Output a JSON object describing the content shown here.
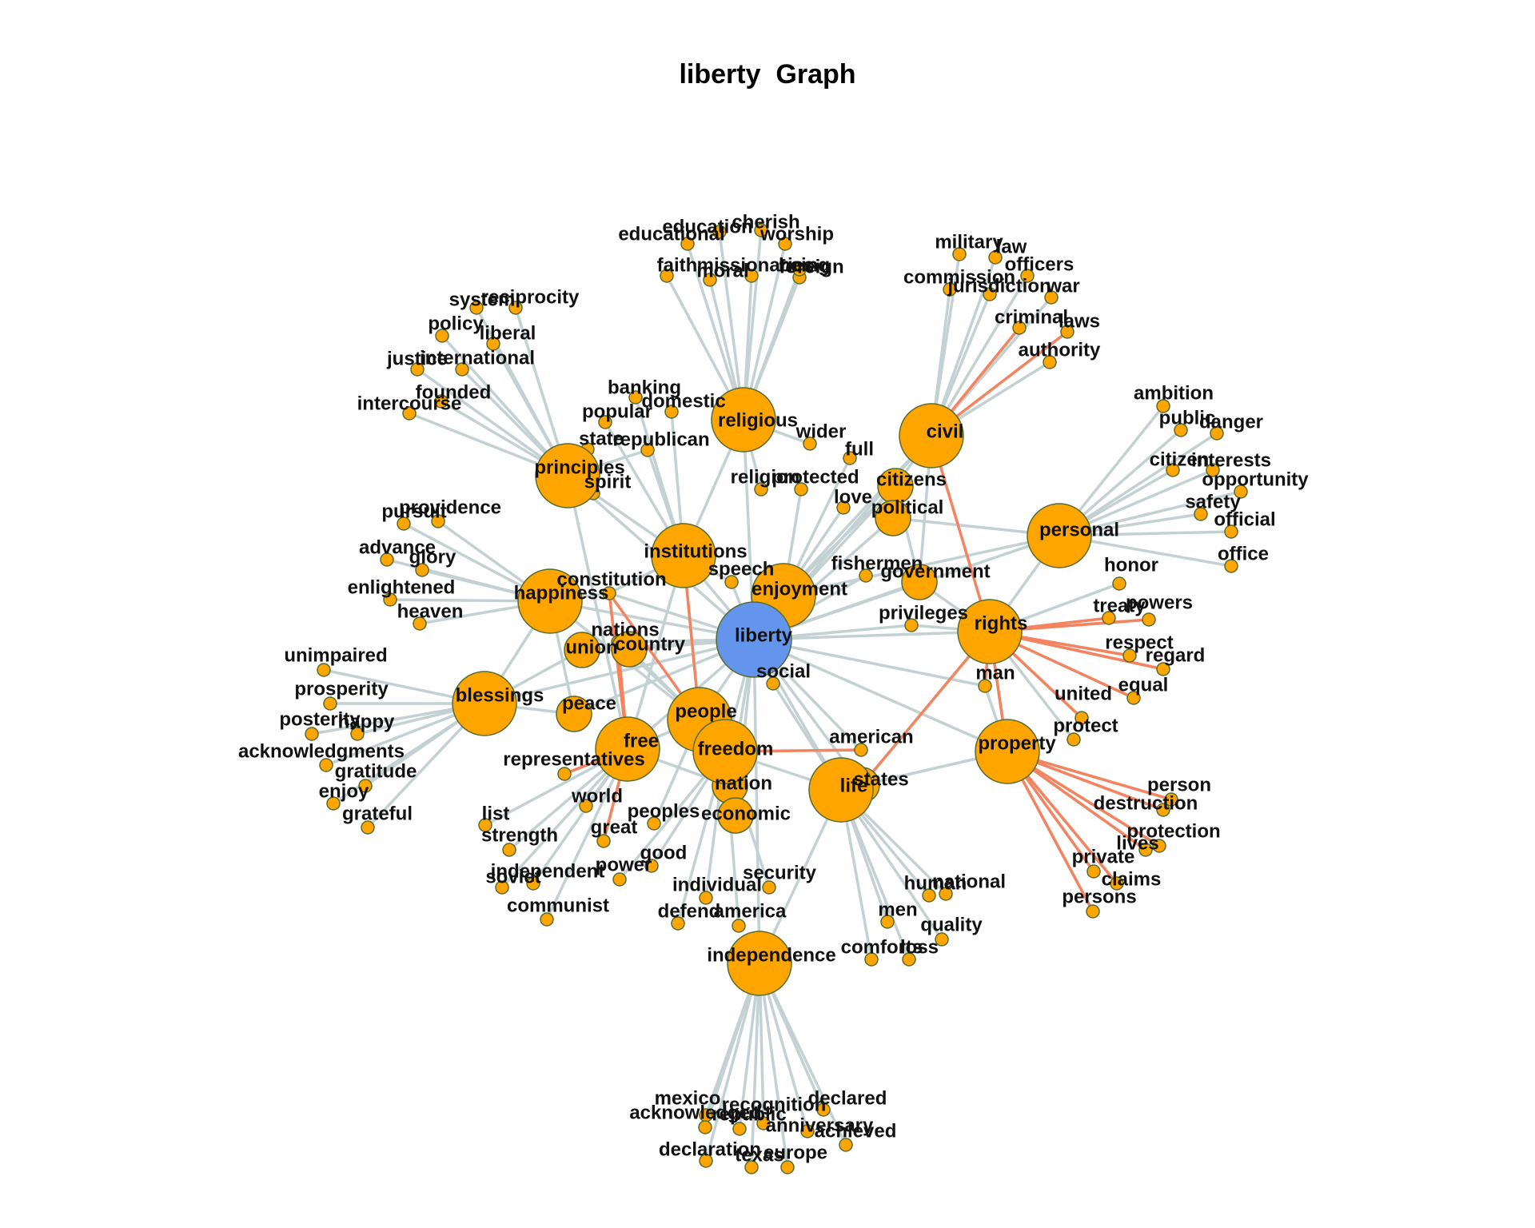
{
  "title": "liberty  Graph",
  "colors": {
    "edge": "#c4d1d3",
    "edge_highlight": "#f4845f",
    "node": "#ffa500",
    "node_stroke": "#556b2f",
    "center": "#6495ed"
  },
  "nodes": [
    {
      "id": "liberty",
      "label": "liberty",
      "size": "center"
    },
    {
      "id": "religious",
      "label": "religious",
      "size": "large"
    },
    {
      "id": "civil",
      "label": "civil",
      "size": "large"
    },
    {
      "id": "principles",
      "label": "principles",
      "size": "large"
    },
    {
      "id": "personal",
      "label": "personal",
      "size": "large"
    },
    {
      "id": "institutions",
      "label": "institutions",
      "size": "large"
    },
    {
      "id": "happiness",
      "label": "happiness",
      "size": "large"
    },
    {
      "id": "enjoyment",
      "label": "enjoyment",
      "size": "large"
    },
    {
      "id": "rights",
      "label": "rights",
      "size": "large"
    },
    {
      "id": "blessings",
      "label": "blessings",
      "size": "large"
    },
    {
      "id": "people",
      "label": "people",
      "size": "large"
    },
    {
      "id": "free",
      "label": "free",
      "size": "large"
    },
    {
      "id": "freedom",
      "label": "freedom",
      "size": "large"
    },
    {
      "id": "property",
      "label": "property",
      "size": "large"
    },
    {
      "id": "life",
      "label": "life",
      "size": "large"
    },
    {
      "id": "independence",
      "label": "independence",
      "size": "large"
    },
    {
      "id": "citizens",
      "label": "citizens",
      "size": "medium"
    },
    {
      "id": "political",
      "label": "political",
      "size": "medium"
    },
    {
      "id": "government",
      "label": "government",
      "size": "medium"
    },
    {
      "id": "union",
      "label": "union",
      "size": "medium"
    },
    {
      "id": "country",
      "label": "country",
      "size": "medium"
    },
    {
      "id": "peace",
      "label": "peace",
      "size": "medium"
    },
    {
      "id": "nation",
      "label": "nation",
      "size": "medium"
    },
    {
      "id": "economic",
      "label": "economic",
      "size": "medium"
    },
    {
      "id": "states",
      "label": "states",
      "size": "medium"
    },
    {
      "id": "educational",
      "label": "educational"
    },
    {
      "id": "education",
      "label": "education"
    },
    {
      "id": "cherish",
      "label": "cherish"
    },
    {
      "id": "worship",
      "label": "worship"
    },
    {
      "id": "faith",
      "label": "faith"
    },
    {
      "id": "moral",
      "label": "moral"
    },
    {
      "id": "missionaries",
      "label": "missionaries"
    },
    {
      "id": "foreign",
      "label": "foreign"
    },
    {
      "id": "being",
      "label": "being"
    },
    {
      "id": "military",
      "label": "military"
    },
    {
      "id": "law",
      "label": "law"
    },
    {
      "id": "officers",
      "label": "officers"
    },
    {
      "id": "commission",
      "label": "commission"
    },
    {
      "id": "jurisdiction",
      "label": "jurisdiction"
    },
    {
      "id": "war",
      "label": "war"
    },
    {
      "id": "criminal",
      "label": "criminal"
    },
    {
      "id": "laws",
      "label": "laws"
    },
    {
      "id": "authority",
      "label": "authority"
    },
    {
      "id": "system",
      "label": "system"
    },
    {
      "id": "reciprocity",
      "label": "reciprocity"
    },
    {
      "id": "liberal",
      "label": "liberal"
    },
    {
      "id": "policy",
      "label": "policy"
    },
    {
      "id": "justice",
      "label": "justice"
    },
    {
      "id": "international",
      "label": "international"
    },
    {
      "id": "founded",
      "label": "founded"
    },
    {
      "id": "intercourse",
      "label": "intercourse"
    },
    {
      "id": "banking",
      "label": "banking"
    },
    {
      "id": "popular",
      "label": "popular"
    },
    {
      "id": "domestic",
      "label": "domestic"
    },
    {
      "id": "state",
      "label": "state"
    },
    {
      "id": "republican",
      "label": "republican"
    },
    {
      "id": "spirit",
      "label": "spirit"
    },
    {
      "id": "wider",
      "label": "wider"
    },
    {
      "id": "full",
      "label": "full"
    },
    {
      "id": "religion",
      "label": "religion"
    },
    {
      "id": "protected",
      "label": "protected"
    },
    {
      "id": "love",
      "label": "love"
    },
    {
      "id": "ambition",
      "label": "ambition"
    },
    {
      "id": "public",
      "label": "public"
    },
    {
      "id": "danger",
      "label": "danger"
    },
    {
      "id": "citizen",
      "label": "citizen"
    },
    {
      "id": "interests",
      "label": "interests"
    },
    {
      "id": "opportunity",
      "label": "opportunity"
    },
    {
      "id": "safety",
      "label": "safety"
    },
    {
      "id": "official",
      "label": "official"
    },
    {
      "id": "office",
      "label": "office"
    },
    {
      "id": "honor",
      "label": "honor"
    },
    {
      "id": "pursuit",
      "label": "pursuit"
    },
    {
      "id": "providence",
      "label": "providence"
    },
    {
      "id": "advance",
      "label": "advance"
    },
    {
      "id": "glory",
      "label": "glory"
    },
    {
      "id": "enlightened",
      "label": "enlightened"
    },
    {
      "id": "heaven",
      "label": "heaven"
    },
    {
      "id": "constitution",
      "label": "constitution"
    },
    {
      "id": "speech",
      "label": "speech"
    },
    {
      "id": "fishermen",
      "label": "fishermen"
    },
    {
      "id": "privileges",
      "label": "privileges"
    },
    {
      "id": "treaty",
      "label": "treaty"
    },
    {
      "id": "powers",
      "label": "powers"
    },
    {
      "id": "respect",
      "label": "respect"
    },
    {
      "id": "regard",
      "label": "regard"
    },
    {
      "id": "nations",
      "label": "nations"
    },
    {
      "id": "social",
      "label": "social"
    },
    {
      "id": "man",
      "label": "man"
    },
    {
      "id": "equal",
      "label": "equal"
    },
    {
      "id": "united",
      "label": "united"
    },
    {
      "id": "protect",
      "label": "protect"
    },
    {
      "id": "unimpaired",
      "label": "unimpaired"
    },
    {
      "id": "prosperity",
      "label": "prosperity"
    },
    {
      "id": "posterity",
      "label": "posterity"
    },
    {
      "id": "happy",
      "label": "happy"
    },
    {
      "id": "acknowledgments",
      "label": "acknowledgments"
    },
    {
      "id": "gratitude",
      "label": "gratitude"
    },
    {
      "id": "enjoy",
      "label": "enjoy"
    },
    {
      "id": "grateful",
      "label": "grateful"
    },
    {
      "id": "american",
      "label": "american"
    },
    {
      "id": "representatives",
      "label": "representatives"
    },
    {
      "id": "world",
      "label": "world"
    },
    {
      "id": "list",
      "label": "list"
    },
    {
      "id": "strength",
      "label": "strength"
    },
    {
      "id": "great",
      "label": "great"
    },
    {
      "id": "peoples",
      "label": "peoples"
    },
    {
      "id": "good",
      "label": "good"
    },
    {
      "id": "power",
      "label": "power"
    },
    {
      "id": "independent",
      "label": "independent"
    },
    {
      "id": "soviet",
      "label": "soviet"
    },
    {
      "id": "communist",
      "label": "communist"
    },
    {
      "id": "individual",
      "label": "individual"
    },
    {
      "id": "security",
      "label": "security"
    },
    {
      "id": "defend",
      "label": "defend"
    },
    {
      "id": "america",
      "label": "america"
    },
    {
      "id": "human",
      "label": "human"
    },
    {
      "id": "national",
      "label": "national"
    },
    {
      "id": "men",
      "label": "men"
    },
    {
      "id": "quality",
      "label": "quality"
    },
    {
      "id": "comforts",
      "label": "comforts"
    },
    {
      "id": "loss",
      "label": "loss"
    },
    {
      "id": "person",
      "label": "person"
    },
    {
      "id": "destruction",
      "label": "destruction"
    },
    {
      "id": "protection",
      "label": "protection"
    },
    {
      "id": "lives",
      "label": "lives"
    },
    {
      "id": "private",
      "label": "private"
    },
    {
      "id": "claims",
      "label": "claims"
    },
    {
      "id": "persons",
      "label": "persons"
    },
    {
      "id": "mexico",
      "label": "mexico"
    },
    {
      "id": "declared",
      "label": "declared"
    },
    {
      "id": "acknowledged",
      "label": "acknowledged"
    },
    {
      "id": "recognition",
      "label": "recognition"
    },
    {
      "id": "republic",
      "label": "republic"
    },
    {
      "id": "anniversary",
      "label": "anniversary"
    },
    {
      "id": "achieved",
      "label": "achieved"
    },
    {
      "id": "declaration",
      "label": "declaration"
    },
    {
      "id": "texas",
      "label": "texas"
    },
    {
      "id": "europe",
      "label": "europe"
    }
  ],
  "edges": [
    [
      "liberty",
      "religious"
    ],
    [
      "liberty",
      "civil"
    ],
    [
      "liberty",
      "principles"
    ],
    [
      "liberty",
      "personal"
    ],
    [
      "liberty",
      "institutions"
    ],
    [
      "liberty",
      "happiness"
    ],
    [
      "liberty",
      "enjoyment"
    ],
    [
      "liberty",
      "rights"
    ],
    [
      "liberty",
      "blessings"
    ],
    [
      "liberty",
      "people"
    ],
    [
      "liberty",
      "free"
    ],
    [
      "liberty",
      "freedom"
    ],
    [
      "liberty",
      "property"
    ],
    [
      "liberty",
      "life"
    ],
    [
      "liberty",
      "independence"
    ],
    [
      "liberty",
      "citizens"
    ],
    [
      "liberty",
      "political"
    ],
    [
      "liberty",
      "government"
    ],
    [
      "liberty",
      "union"
    ],
    [
      "liberty",
      "country"
    ],
    [
      "liberty",
      "peace"
    ],
    [
      "liberty",
      "nation"
    ],
    [
      "liberty",
      "economic"
    ],
    [
      "liberty",
      "states"
    ],
    [
      "liberty",
      "social"
    ],
    [
      "liberty",
      "speech"
    ],
    [
      "liberty",
      "privileges"
    ],
    [
      "liberty",
      "fishermen"
    ],
    [
      "liberty",
      "constitution"
    ],
    [
      "liberty",
      "nations"
    ],
    [
      "liberty",
      "american"
    ],
    [
      "liberty",
      "man"
    ],
    [
      "religious",
      "educational"
    ],
    [
      "religious",
      "education"
    ],
    [
      "religious",
      "cherish"
    ],
    [
      "religious",
      "worship"
    ],
    [
      "religious",
      "faith"
    ],
    [
      "religious",
      "moral"
    ],
    [
      "religious",
      "missionaries"
    ],
    [
      "religious",
      "foreign"
    ],
    [
      "religious",
      "being"
    ],
    [
      "religious",
      "wider"
    ],
    [
      "religious",
      "religion"
    ],
    [
      "religious",
      "institutions"
    ],
    [
      "civil",
      "military"
    ],
    [
      "civil",
      "law"
    ],
    [
      "civil",
      "officers"
    ],
    [
      "civil",
      "commission"
    ],
    [
      "civil",
      "jurisdiction"
    ],
    [
      "civil",
      "war"
    ],
    [
      "civil",
      "authority"
    ],
    [
      "civil",
      "citizens"
    ],
    [
      "civil",
      "enjoyment"
    ],
    [
      "civil",
      "government"
    ],
    [
      "principles",
      "system"
    ],
    [
      "principles",
      "reciprocity"
    ],
    [
      "principles",
      "liberal"
    ],
    [
      "principles",
      "policy"
    ],
    [
      "principles",
      "justice"
    ],
    [
      "principles",
      "international"
    ],
    [
      "principles",
      "founded"
    ],
    [
      "principles",
      "intercourse"
    ],
    [
      "principles",
      "state"
    ],
    [
      "principles",
      "spirit"
    ],
    [
      "principles",
      "republican"
    ],
    [
      "principles",
      "institutions"
    ],
    [
      "principles",
      "free"
    ],
    [
      "personal",
      "ambition"
    ],
    [
      "personal",
      "public"
    ],
    [
      "personal",
      "danger"
    ],
    [
      "personal",
      "citizen"
    ],
    [
      "personal",
      "interests"
    ],
    [
      "personal",
      "opportunity"
    ],
    [
      "personal",
      "safety"
    ],
    [
      "personal",
      "official"
    ],
    [
      "personal",
      "office"
    ],
    [
      "personal",
      "rights"
    ],
    [
      "personal",
      "political"
    ],
    [
      "personal",
      "enjoyment"
    ],
    [
      "institutions",
      "banking"
    ],
    [
      "institutions",
      "popular"
    ],
    [
      "institutions",
      "domestic"
    ],
    [
      "institutions",
      "republican"
    ],
    [
      "institutions",
      "speech"
    ],
    [
      "institutions",
      "people"
    ],
    [
      "institutions",
      "free"
    ],
    [
      "institutions",
      "constitution"
    ],
    [
      "happiness",
      "pursuit"
    ],
    [
      "happiness",
      "providence"
    ],
    [
      "happiness",
      "advance"
    ],
    [
      "happiness",
      "glory"
    ],
    [
      "happiness",
      "enlightened"
    ],
    [
      "happiness",
      "heaven"
    ],
    [
      "happiness",
      "constitution"
    ],
    [
      "happiness",
      "people"
    ],
    [
      "happiness",
      "peace"
    ],
    [
      "happiness",
      "blessings"
    ],
    [
      "enjoyment",
      "full"
    ],
    [
      "enjoyment",
      "protected"
    ],
    [
      "enjoyment",
      "love"
    ],
    [
      "enjoyment",
      "citizens"
    ],
    [
      "rights",
      "honor"
    ],
    [
      "rights",
      "treaty"
    ],
    [
      "rights",
      "powers"
    ],
    [
      "rights",
      "respect"
    ],
    [
      "rights",
      "regard"
    ],
    [
      "rights",
      "equal"
    ],
    [
      "rights",
      "united"
    ],
    [
      "rights",
      "protect"
    ],
    [
      "rights",
      "man"
    ],
    [
      "rights",
      "government"
    ],
    [
      "rights",
      "privileges"
    ],
    [
      "rights",
      "property"
    ],
    [
      "rights",
      "states"
    ],
    [
      "blessings",
      "unimpaired"
    ],
    [
      "blessings",
      "prosperity"
    ],
    [
      "blessings",
      "posterity"
    ],
    [
      "blessings",
      "happy"
    ],
    [
      "blessings",
      "acknowledgments"
    ],
    [
      "blessings",
      "gratitude"
    ],
    [
      "blessings",
      "enjoy"
    ],
    [
      "blessings",
      "grateful"
    ],
    [
      "blessings",
      "peace"
    ],
    [
      "blessings",
      "union"
    ],
    [
      "people",
      "free"
    ],
    [
      "people",
      "freedom"
    ],
    [
      "people",
      "nations"
    ],
    [
      "people",
      "country"
    ],
    [
      "people",
      "peoples"
    ],
    [
      "free",
      "representatives"
    ],
    [
      "free",
      "world"
    ],
    [
      "free",
      "list"
    ],
    [
      "free",
      "strength"
    ],
    [
      "free",
      "great"
    ],
    [
      "free",
      "independent"
    ],
    [
      "free",
      "soviet"
    ],
    [
      "free",
      "communist"
    ],
    [
      "free",
      "nation"
    ],
    [
      "freedom",
      "economic"
    ],
    [
      "freedom",
      "good"
    ],
    [
      "freedom",
      "power"
    ],
    [
      "freedom",
      "individual"
    ],
    [
      "freedom",
      "security"
    ],
    [
      "freedom",
      "defend"
    ],
    [
      "freedom",
      "america"
    ],
    [
      "freedom",
      "american"
    ],
    [
      "freedom",
      "life"
    ],
    [
      "property",
      "person"
    ],
    [
      "property",
      "destruction"
    ],
    [
      "property",
      "protection"
    ],
    [
      "property",
      "lives"
    ],
    [
      "property",
      "private"
    ],
    [
      "property",
      "claims"
    ],
    [
      "property",
      "persons"
    ],
    [
      "property",
      "life"
    ],
    [
      "property",
      "man"
    ],
    [
      "property",
      "states"
    ],
    [
      "life",
      "human"
    ],
    [
      "life",
      "national"
    ],
    [
      "life",
      "men"
    ],
    [
      "life",
      "quality"
    ],
    [
      "life",
      "comforts"
    ],
    [
      "life",
      "loss"
    ],
    [
      "life",
      "independence"
    ],
    [
      "life",
      "states"
    ],
    [
      "life",
      "social"
    ],
    [
      "independence",
      "mexico"
    ],
    [
      "independence",
      "declared"
    ],
    [
      "independence",
      "acknowledged"
    ],
    [
      "independence",
      "recognition"
    ],
    [
      "independence",
      "republic"
    ],
    [
      "independence",
      "anniversary"
    ],
    [
      "independence",
      "achieved"
    ],
    [
      "independence",
      "declaration"
    ],
    [
      "independence",
      "texas"
    ],
    [
      "independence",
      "europe"
    ],
    [
      "government",
      "citizens"
    ]
  ],
  "highlight_edges": [
    [
      "civil",
      "criminal"
    ],
    [
      "civil",
      "laws"
    ],
    [
      "civil",
      "rights"
    ],
    [
      "rights",
      "treaty"
    ],
    [
      "rights",
      "powers"
    ],
    [
      "rights",
      "respect"
    ],
    [
      "rights",
      "regard"
    ],
    [
      "rights",
      "equal"
    ],
    [
      "rights",
      "united"
    ],
    [
      "rights",
      "man"
    ],
    [
      "rights",
      "states"
    ],
    [
      "rights",
      "property"
    ],
    [
      "property",
      "person"
    ],
    [
      "property",
      "destruction"
    ],
    [
      "property",
      "protection"
    ],
    [
      "property",
      "lives"
    ],
    [
      "property",
      "private"
    ],
    [
      "property",
      "claims"
    ],
    [
      "property",
      "persons"
    ],
    [
      "free",
      "constitution"
    ],
    [
      "free",
      "nations"
    ],
    [
      "free",
      "great"
    ],
    [
      "free",
      "representatives"
    ],
    [
      "people",
      "constitution"
    ],
    [
      "people",
      "institutions"
    ],
    [
      "freedom",
      "american"
    ],
    [
      "freedom",
      "nation"
    ]
  ]
}
